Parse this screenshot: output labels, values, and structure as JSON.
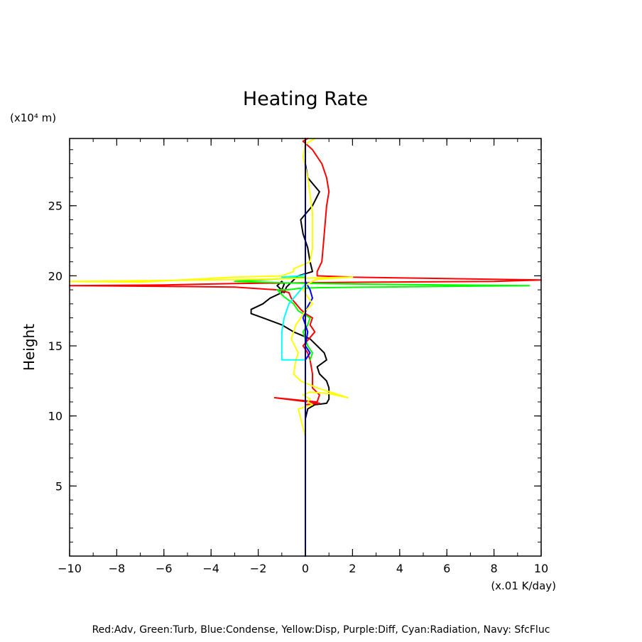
{
  "chart_data": {
    "type": "line",
    "title": "Heating Rate",
    "ylabel": "Height",
    "y_unit_label": "(x10⁴ m)",
    "x_unit_label": "(x.01 K/day)",
    "legend_text": "Red:Adv, Green:Turb, Blue:Condense, Yellow:Disp, Purple:Diff, Cyan:Radiation, Navy: SfcFluc",
    "xlim": [
      -10,
      10
    ],
    "ylim": [
      0,
      29.8
    ],
    "x_ticks": [
      -10,
      -8,
      -6,
      -4,
      -2,
      0,
      2,
      4,
      6,
      8,
      10
    ],
    "x_tick_labels": [
      "−10",
      "−8",
      "−6",
      "−4",
      "−2",
      "0",
      "2",
      "4",
      "6",
      "8",
      "10"
    ],
    "y_ticks": [
      5,
      10,
      15,
      20,
      25
    ],
    "y_tick_labels": [
      "5",
      "10",
      "15",
      "20",
      "25"
    ],
    "grid": false,
    "legend_placement": "bottom",
    "series": [
      {
        "color": "#000000",
        "x": [
          0,
          0,
          0.1,
          0.4,
          0.9,
          1.0,
          1.0,
          1.0,
          0.9,
          0.6,
          0.5,
          0.9,
          0.8,
          0.5,
          0.2,
          -0.5,
          -1.0,
          -1.8,
          -2.3,
          -2.3,
          -1.8,
          -1.5,
          -1.0,
          -1.0,
          -0.9,
          -1.0,
          -1.2,
          -0.9,
          -0.8,
          -0.5,
          -0.3,
          0.3,
          0.2,
          0.1,
          -0.1,
          -0.2,
          0.3,
          0.6,
          0.1,
          0,
          0,
          0,
          0
        ],
        "y": [
          8.0,
          9.8,
          10.5,
          10.8,
          10.9,
          11.2,
          11.5,
          12.0,
          12.5,
          13.0,
          13.5,
          14.0,
          14.5,
          15.0,
          15.5,
          16.0,
          16.5,
          17.0,
          17.3,
          17.6,
          18.0,
          18.4,
          18.8,
          19.0,
          19.4,
          19.6,
          19.3,
          18.8,
          19.2,
          19.7,
          20.0,
          20.3,
          21.0,
          22.0,
          23.0,
          24.0,
          25.0,
          26.0,
          27.0,
          28.0,
          29.0,
          29.8,
          29.8
        ]
      },
      {
        "color": "#ff0000",
        "x": [
          0,
          0.6,
          -1.3,
          0.5,
          0.6,
          0.3,
          0.3,
          0.2,
          0.1,
          -0.1,
          0.4,
          0.2,
          0.3,
          0.0,
          -0.2,
          -0.4,
          -0.6,
          -0.7,
          -1.2,
          -3.0,
          -6.0,
          -10.0,
          -6.0,
          -3.0,
          3.0,
          8.0,
          10.0,
          6.0,
          2.0,
          0.5,
          0.5,
          0.7,
          0.8,
          0.9,
          1.0,
          0.9,
          0.7,
          0.3,
          -0.1,
          0.1
        ],
        "y": [
          10.8,
          10.9,
          11.3,
          11.0,
          11.5,
          12.0,
          13.0,
          14.0,
          14.5,
          15.0,
          16.0,
          16.5,
          17.0,
          17.3,
          17.6,
          18.0,
          18.4,
          18.8,
          19.0,
          19.2,
          19.25,
          19.3,
          19.35,
          19.45,
          19.55,
          19.6,
          19.7,
          19.8,
          19.9,
          20.0,
          20.3,
          21.0,
          23.0,
          25.0,
          26.0,
          27.0,
          28.0,
          29.0,
          29.6,
          29.8
        ]
      },
      {
        "color": "#00ff00",
        "x": [
          0.2,
          0.3,
          0.1,
          -0.1,
          0.1,
          0.2,
          -0.3,
          -0.5,
          -0.9,
          -1.2,
          -0.8,
          -0.5,
          -0.3,
          0.5,
          3.0,
          6.0,
          9.5,
          6.0,
          3.0,
          0.5,
          -1.0,
          -2.0,
          -3.0,
          -1.5,
          0.0
        ],
        "y": [
          14.0,
          14.5,
          15.0,
          16.0,
          16.5,
          17.0,
          17.5,
          18.0,
          18.5,
          19.0,
          19.0,
          19.05,
          19.1,
          19.15,
          19.2,
          19.25,
          19.3,
          19.35,
          19.4,
          19.45,
          19.5,
          19.55,
          19.6,
          19.75,
          19.9
        ]
      },
      {
        "color": "#0000ff",
        "x": [
          0,
          0,
          0,
          0,
          0.2,
          0.0,
          0.1,
          0.0,
          -0.1,
          0.1,
          0.3,
          0.2,
          0.0,
          0,
          0,
          0,
          0
        ],
        "y": [
          0,
          10,
          13.5,
          14.0,
          14.5,
          15.0,
          16.0,
          16.5,
          17.0,
          17.8,
          18.4,
          19.0,
          19.6,
          20.0,
          25.0,
          29.8,
          29.8
        ]
      },
      {
        "color": "#ffff00",
        "x": [
          0,
          -0.3,
          0.3,
          0.1,
          0.2,
          0.1,
          -0.1,
          0.2,
          1.0,
          1.8,
          0.5,
          -0.2,
          -0.5,
          -0.4,
          -0.3,
          -0.6,
          -0.4,
          0.0,
          0.3,
          0.1,
          -0.1,
          0.0,
          0.2,
          0.4,
          0.5,
          1.0,
          2.0,
          -2.0,
          -7.0,
          -10.0,
          -7.0,
          -3.0,
          -1.0,
          -0.5,
          -0.5,
          0.2,
          0.3,
          0.3,
          0.1,
          -0.1,
          0.0,
          0.3,
          0.4
        ],
        "y": [
          8.5,
          10.5,
          10.8,
          11.0,
          11.2,
          11.3,
          11.5,
          11.7,
          11.6,
          11.3,
          12.0,
          12.5,
          13.0,
          14.0,
          14.5,
          15.5,
          16.5,
          17.5,
          18.0,
          18.5,
          19.0,
          19.3,
          19.5,
          19.7,
          19.75,
          19.8,
          19.9,
          19.75,
          19.65,
          19.6,
          19.55,
          19.9,
          20.0,
          20.3,
          20.5,
          21.0,
          22.0,
          24.5,
          27.0,
          28.5,
          29.4,
          29.7,
          29.8
        ]
      },
      {
        "color": "#800080",
        "x": [
          0,
          0,
          0,
          0
        ],
        "y": [
          9.7,
          10.2,
          11.0,
          11.6
        ]
      },
      {
        "color": "#00ffff",
        "x": [
          0,
          -1.0,
          -1.0,
          -1.0,
          -1.0,
          -0.9,
          -0.7,
          -0.2,
          0,
          0,
          0,
          -0.2,
          -1.0
        ],
        "y": [
          14.0,
          14.0,
          14.4,
          15.0,
          16.0,
          17.0,
          18.0,
          19.0,
          19.4,
          19.9,
          20.1,
          20.0,
          19.9
        ]
      },
      {
        "color": "#000080",
        "x": [
          0,
          0
        ],
        "y": [
          0,
          29.8
        ]
      }
    ]
  }
}
